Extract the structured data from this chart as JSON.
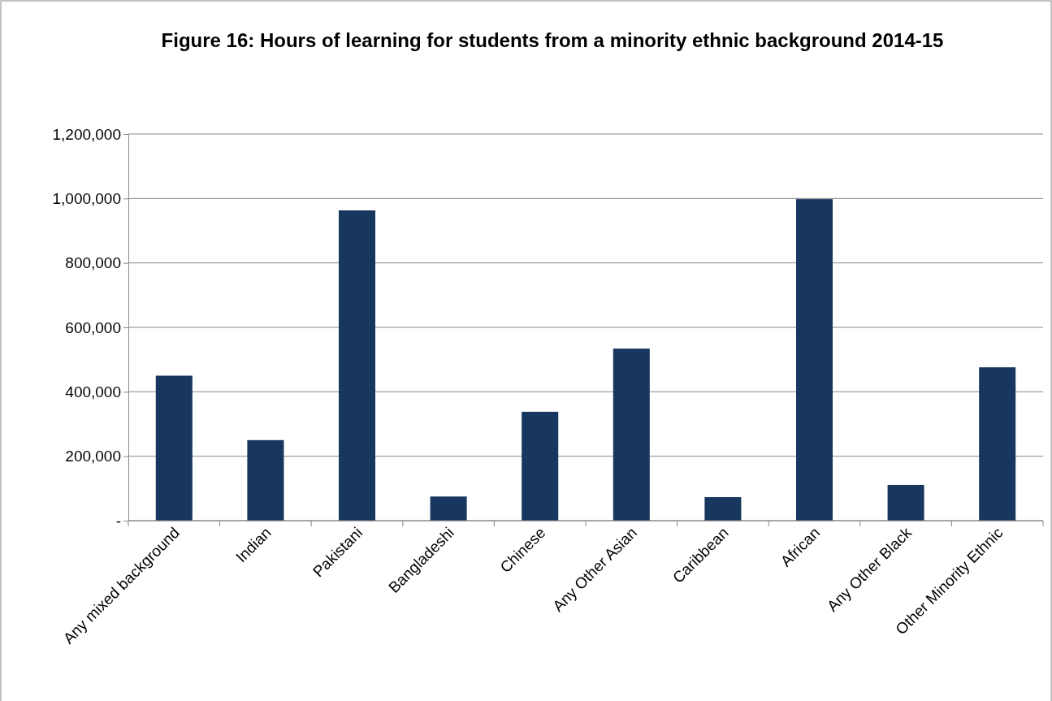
{
  "chart_data": {
    "type": "bar",
    "title": "Figure 16: Hours of learning for students from a minority ethnic background 2014-15",
    "categories": [
      "Any mixed background",
      "Indian",
      "Pakistani",
      "Bangladeshi",
      "Chinese",
      "Any Other Asian",
      "Caribbean",
      "African",
      "Any Other Black",
      "Other Minority Ethnic"
    ],
    "values": [
      450000,
      250000,
      963000,
      75000,
      338000,
      534000,
      73000,
      998000,
      111000,
      476000
    ],
    "color": "#17375e",
    "ylim": [
      0,
      1200000
    ],
    "yticks": [
      {
        "value": 0,
        "label": "-"
      },
      {
        "value": 200000,
        "label": "200,000"
      },
      {
        "value": 400000,
        "label": "400,000"
      },
      {
        "value": 600000,
        "label": "600,000"
      },
      {
        "value": 800000,
        "label": "800,000"
      },
      {
        "value": 1000000,
        "label": "1,000,000"
      },
      {
        "value": 1200000,
        "label": "1,200,000"
      }
    ],
    "grid": "y"
  }
}
